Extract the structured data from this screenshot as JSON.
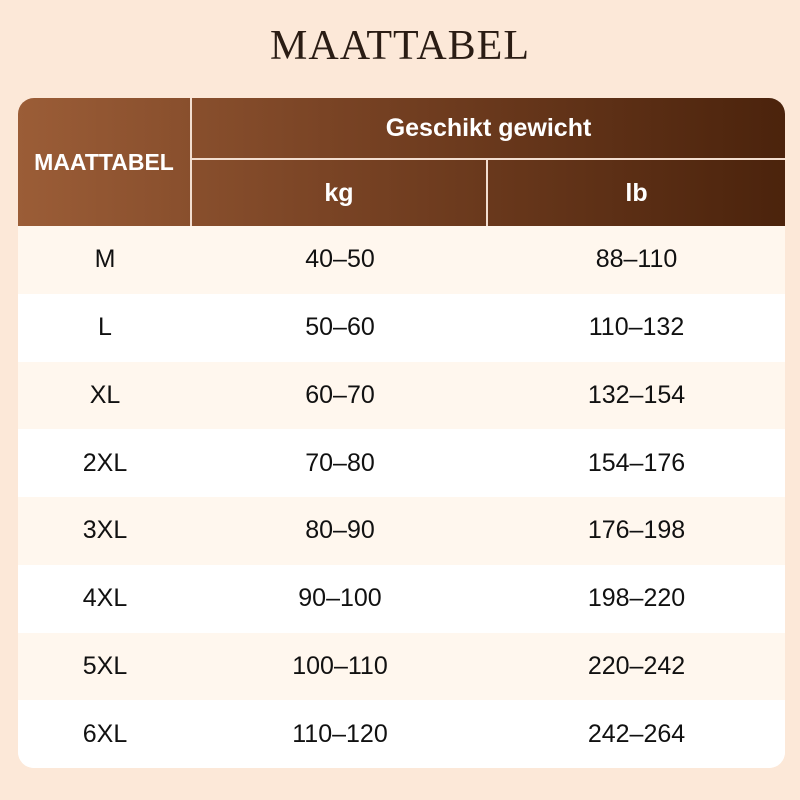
{
  "header": {
    "title": "MAATTABEL"
  },
  "table": {
    "corner": "MAATTABEL",
    "group": "Geschikt gewicht",
    "columns": [
      "kg",
      "lb"
    ],
    "rows": [
      [
        "M",
        "40–50",
        "88–110"
      ],
      [
        "L",
        "50–60",
        "110–132"
      ],
      [
        "XL",
        "60–70",
        "132–154"
      ],
      [
        "2XL",
        "70–80",
        "154–176"
      ],
      [
        "3XL",
        "80–90",
        "176–198"
      ],
      [
        "4XL",
        "90–100",
        "198–220"
      ],
      [
        "5XL",
        "100–110",
        "220–242"
      ],
      [
        "6XL",
        "110–120",
        "242–264"
      ]
    ]
  }
}
